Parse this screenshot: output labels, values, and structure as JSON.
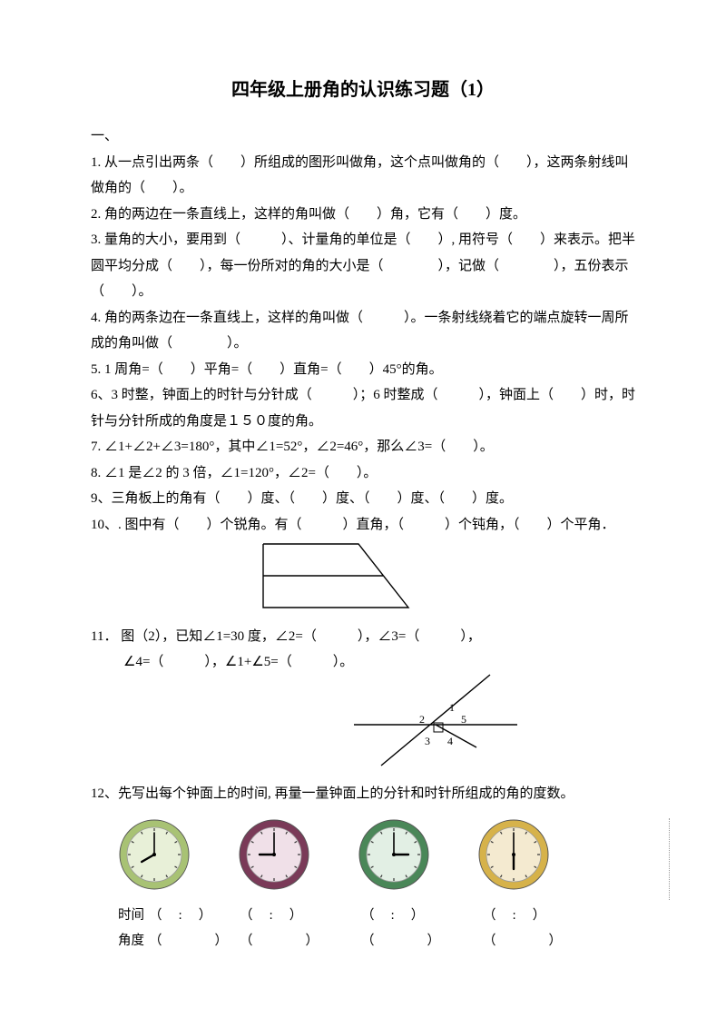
{
  "title": "四年级上册角的认识练习题（1）",
  "section1": "一、",
  "q1": "1. 从一点引出两条（　　）所组成的图形叫做角，这个点叫做角的（　　），这两条射线叫做角的（　　）。",
  "q2": "2. 角的两边在一条直线上，这样的角叫做（　　）角，它有（　　）度。",
  "q3": "3.  量角的大小，要用到（　　　）、计量角的单位是（　　）, 用符号（　　）来表示。把半圆平均分成（　　），每一份所对的角的大小是（　　　　），记做（　　　　），五份表示（　　）。",
  "q4": "4.   角的两条边在一条直线上，这样的角叫做（　　　）。一条射线绕着它的端点旋转一周所成的角叫做（　　　　）。",
  "q5": "5. 1 周角=（　　）平角=（　　）直角=（　　）45°的角。",
  "q6": "6、3 时整，钟面上的时针与分针成（　　　）；6 时整成（　　　），钟面上（　　）时，时针与分针所成的角度是１５０度的角。",
  "q7": "7. ∠1+∠2+∠3=180°，其中∠1=52°，∠2=46°，那么∠3=（　　）。",
  "q8": "8. ∠1 是∠2 的 3 倍，∠1=120°，∠2=（　　）。",
  "q9": "9、三角板上的角有（　　）度、（　　）度、（　　）度、（　　）度。",
  "q10": "10、. 图中有（　　）个锐角。有（　　　）直角，（　　　）个钝角，（　　）个平角．",
  "q11a": "11．  图（2），已知∠1=30 度，∠2=（　　　），∠3=（　　　），",
  "q11b": "∠4=（　　　），∠1+∠5=（　　　）。",
  "q12": "12、先写出每个钟面上的时间, 再量一量钟面上的分针和时针所组成的角的度数。",
  "time_label": "时间",
  "angle_label": "角度",
  "blank_time": "（　 :　 ）",
  "blank_angle": "（　　　　）",
  "clocks": [
    {
      "rim": "#a8c274",
      "inner": "#e8f0d8",
      "hour_angle": 240,
      "min_angle": 0
    },
    {
      "rim": "#7a3a58",
      "inner": "#f0e0e8",
      "hour_angle": 270,
      "min_angle": 0
    },
    {
      "rim": "#4a8758",
      "inner": "#e2efe4",
      "hour_angle": 90,
      "min_angle": 0
    },
    {
      "rim": "#d6b24a",
      "inner": "#f4ead0",
      "hour_angle": 180,
      "min_angle": 0
    }
  ],
  "angle_labels": {
    "a1": "1",
    "a2": "2",
    "a3": "3",
    "a4": "4",
    "a5": "5"
  }
}
